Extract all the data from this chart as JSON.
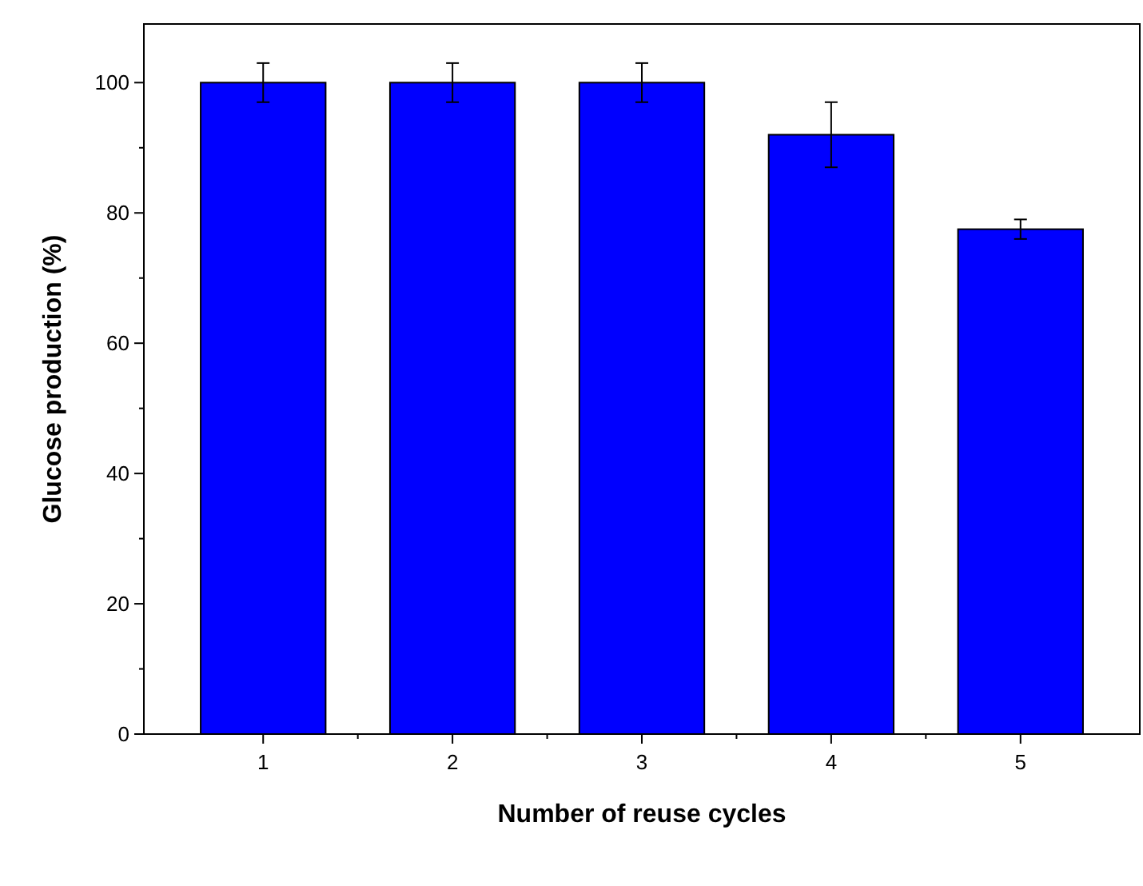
{
  "chart_data": {
    "type": "bar",
    "xlabel": "Number of reuse cycles",
    "ylabel": "Glucose production (%)",
    "categories": [
      "1",
      "2",
      "3",
      "4",
      "5"
    ],
    "values": [
      100,
      100,
      100,
      92,
      77.5
    ],
    "errors": [
      3,
      3,
      3,
      5,
      1.5
    ],
    "color": "#0000ff",
    "ylim": [
      0,
      109
    ],
    "yticks": [
      0,
      {
        "value": 10,
        "label": null
      },
      20,
      {
        "value": 30,
        "label": null
      },
      40,
      {
        "value": 50,
        "label": null
      },
      60,
      {
        "value": 70,
        "label": null
      },
      80,
      {
        "value": 90,
        "label": null
      },
      100
    ],
    "grid": false
  }
}
